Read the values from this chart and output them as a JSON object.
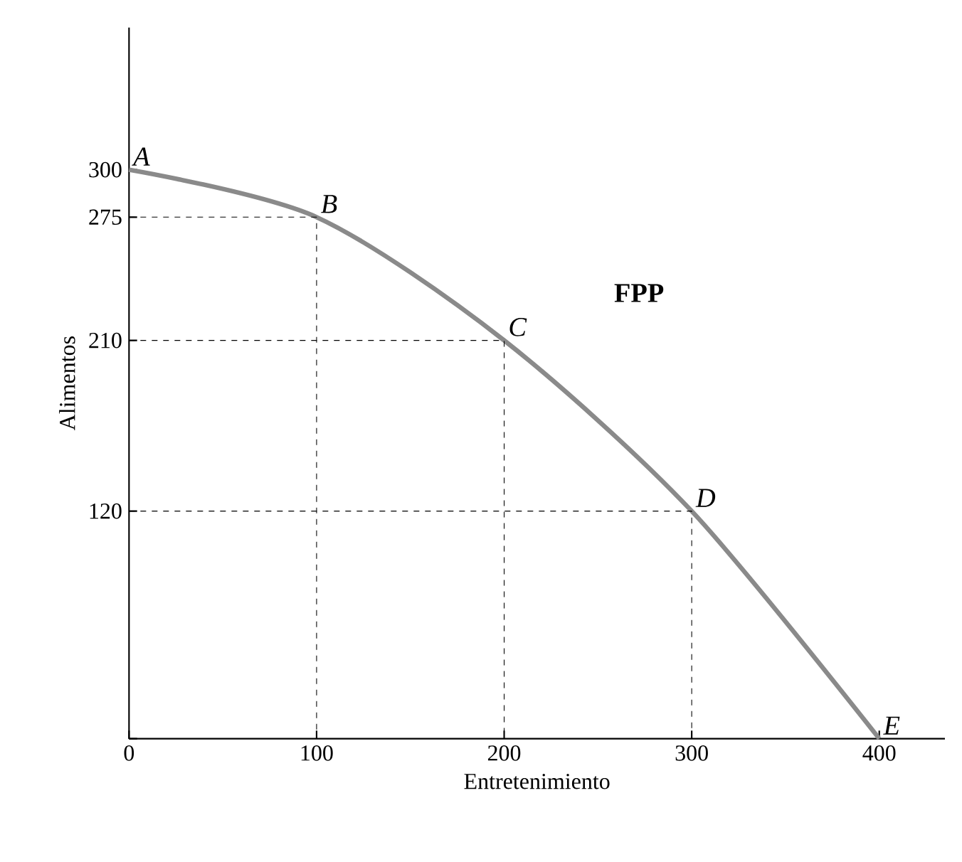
{
  "chart_data": {
    "type": "line",
    "xlabel": "Entretenimiento",
    "ylabel": "Alimentos",
    "xlim": [
      0,
      435
    ],
    "ylim": [
      0,
      375
    ],
    "xticks": [
      0,
      100,
      200,
      300,
      400
    ],
    "yticks": [
      {
        "value": 0,
        "label": null
      },
      120,
      210,
      275,
      300
    ],
    "grid": false,
    "legend": false,
    "marker": "none",
    "series": [
      {
        "name": "FPP",
        "color": "#8a8a8a",
        "x": [
          0,
          100,
          200,
          300,
          400
        ],
        "values": [
          300,
          275,
          210,
          120,
          0
        ],
        "line_style": "solid"
      },
      {
        "color": "#000000",
        "x": [
          0,
          100,
          100
        ],
        "values": [
          275,
          275,
          0
        ],
        "line_style": "dashed"
      },
      {
        "color": "#000000",
        "x": [
          0,
          200,
          200
        ],
        "values": [
          210,
          210,
          0
        ],
        "line_style": "dashed"
      },
      {
        "color": "#000000",
        "x": [
          0,
          300,
          300
        ],
        "values": [
          120,
          120,
          0
        ],
        "line_style": "dashed"
      }
    ],
    "annotations": [
      {
        "text": "*A*",
        "x": 0,
        "y": 300
      },
      {
        "text": "*B*",
        "x": 100,
        "y": 275
      },
      {
        "text": "*C*",
        "x": 200,
        "y": 210
      },
      {
        "text": "*D*",
        "x": 300,
        "y": 120
      },
      {
        "text": "*E*",
        "x": 400,
        "y": 0
      }
    ]
  }
}
